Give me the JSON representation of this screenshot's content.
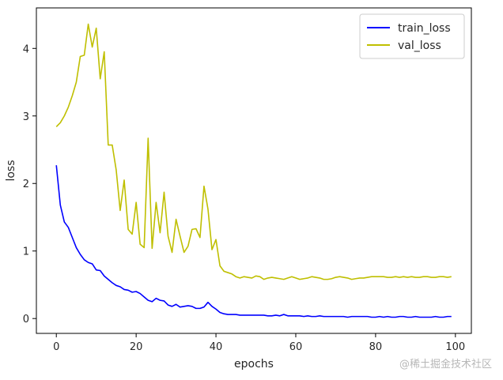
{
  "chart_data": {
    "type": "line",
    "xlabel": "epochs",
    "ylabel": "loss",
    "xlim": [
      -5,
      104
    ],
    "ylim": [
      -0.22,
      4.6
    ],
    "xticks": [
      0,
      20,
      40,
      60,
      80,
      100
    ],
    "yticks": [
      0,
      1,
      2,
      3,
      4
    ],
    "grid": false,
    "legend_position": "top-right",
    "series": [
      {
        "name": "train_loss",
        "color": "#0000ff",
        "x": [
          0,
          1,
          2,
          3,
          4,
          5,
          6,
          7,
          8,
          9,
          10,
          11,
          12,
          13,
          14,
          15,
          16,
          17,
          18,
          19,
          20,
          21,
          22,
          23,
          24,
          25,
          26,
          27,
          28,
          29,
          30,
          31,
          32,
          33,
          34,
          35,
          36,
          37,
          38,
          39,
          40,
          41,
          42,
          43,
          44,
          45,
          46,
          47,
          48,
          49,
          50,
          51,
          52,
          53,
          54,
          55,
          56,
          57,
          58,
          59,
          60,
          61,
          62,
          63,
          64,
          65,
          66,
          67,
          68,
          69,
          70,
          71,
          72,
          73,
          74,
          75,
          76,
          77,
          78,
          79,
          80,
          81,
          82,
          83,
          84,
          85,
          86,
          87,
          88,
          89,
          90,
          91,
          92,
          93,
          94,
          95,
          96,
          97,
          98,
          99
        ],
        "y": [
          2.27,
          1.68,
          1.43,
          1.35,
          1.2,
          1.05,
          0.95,
          0.87,
          0.83,
          0.81,
          0.72,
          0.71,
          0.63,
          0.58,
          0.53,
          0.49,
          0.47,
          0.43,
          0.42,
          0.39,
          0.4,
          0.37,
          0.32,
          0.27,
          0.25,
          0.3,
          0.27,
          0.26,
          0.2,
          0.18,
          0.21,
          0.17,
          0.18,
          0.19,
          0.18,
          0.15,
          0.15,
          0.17,
          0.24,
          0.18,
          0.14,
          0.09,
          0.07,
          0.06,
          0.06,
          0.06,
          0.05,
          0.05,
          0.05,
          0.05,
          0.05,
          0.05,
          0.05,
          0.04,
          0.04,
          0.05,
          0.04,
          0.06,
          0.04,
          0.04,
          0.04,
          0.04,
          0.03,
          0.04,
          0.03,
          0.03,
          0.04,
          0.03,
          0.03,
          0.03,
          0.03,
          0.03,
          0.03,
          0.02,
          0.03,
          0.03,
          0.03,
          0.03,
          0.03,
          0.02,
          0.02,
          0.03,
          0.02,
          0.03,
          0.02,
          0.02,
          0.03,
          0.03,
          0.02,
          0.02,
          0.03,
          0.02,
          0.02,
          0.02,
          0.02,
          0.03,
          0.02,
          0.02,
          0.03,
          0.03
        ]
      },
      {
        "name": "val_loss",
        "color": "#bfbf00",
        "x": [
          0,
          1,
          2,
          3,
          4,
          5,
          6,
          7,
          8,
          9,
          10,
          11,
          12,
          13,
          14,
          15,
          16,
          17,
          18,
          19,
          20,
          21,
          22,
          23,
          24,
          25,
          26,
          27,
          28,
          29,
          30,
          31,
          32,
          33,
          34,
          35,
          36,
          37,
          38,
          39,
          40,
          41,
          42,
          43,
          44,
          45,
          46,
          47,
          48,
          49,
          50,
          51,
          52,
          53,
          54,
          55,
          56,
          57,
          58,
          59,
          60,
          61,
          62,
          63,
          64,
          65,
          66,
          67,
          68,
          69,
          70,
          71,
          72,
          73,
          74,
          75,
          76,
          77,
          78,
          79,
          80,
          81,
          82,
          83,
          84,
          85,
          86,
          87,
          88,
          89,
          90,
          91,
          92,
          93,
          94,
          95,
          96,
          97,
          98,
          99
        ],
        "y": [
          2.84,
          2.9,
          3.0,
          3.13,
          3.3,
          3.5,
          3.88,
          3.9,
          4.36,
          4.02,
          4.3,
          3.55,
          3.95,
          2.57,
          2.57,
          2.2,
          1.6,
          2.05,
          1.32,
          1.25,
          1.72,
          1.1,
          1.05,
          2.67,
          1.04,
          1.72,
          1.27,
          1.87,
          1.22,
          0.98,
          1.47,
          1.22,
          0.98,
          1.07,
          1.32,
          1.33,
          1.2,
          1.96,
          1.62,
          1.02,
          1.17,
          0.78,
          0.7,
          0.68,
          0.66,
          0.62,
          0.6,
          0.62,
          0.61,
          0.6,
          0.63,
          0.62,
          0.58,
          0.6,
          0.61,
          0.6,
          0.59,
          0.58,
          0.6,
          0.62,
          0.6,
          0.58,
          0.59,
          0.6,
          0.62,
          0.61,
          0.6,
          0.58,
          0.58,
          0.59,
          0.61,
          0.62,
          0.61,
          0.6,
          0.58,
          0.59,
          0.6,
          0.6,
          0.61,
          0.62,
          0.62,
          0.62,
          0.62,
          0.61,
          0.61,
          0.62,
          0.61,
          0.62,
          0.61,
          0.62,
          0.61,
          0.61,
          0.62,
          0.62,
          0.61,
          0.61,
          0.62,
          0.62,
          0.61,
          0.62
        ]
      }
    ]
  },
  "watermark": "@稀土掘金技术社区"
}
